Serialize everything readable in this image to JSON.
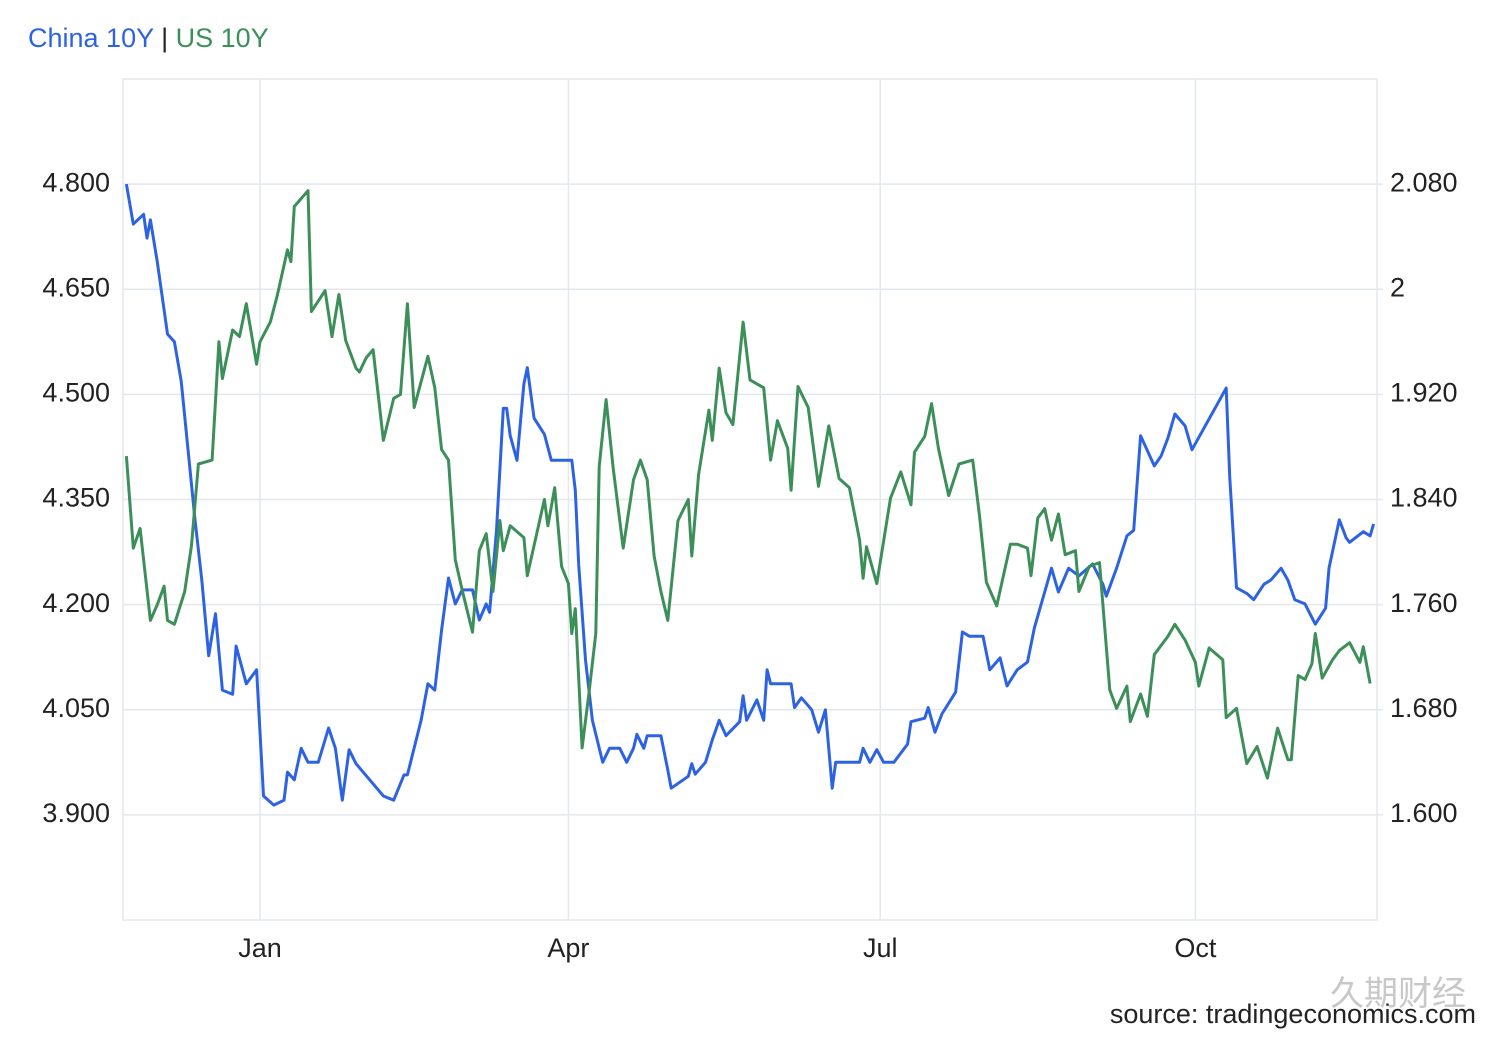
{
  "chart_data": {
    "type": "line",
    "legend_separator": "|",
    "source": "source: tradingeconomics.com",
    "watermark": "久期财经",
    "xlim": [
      0,
      366
    ],
    "xticks": [
      {
        "value": 40,
        "label": "Jan"
      },
      {
        "value": 130,
        "label": "Apr"
      },
      {
        "value": 221,
        "label": "Jul"
      },
      {
        "value": 313,
        "label": "Oct"
      }
    ],
    "ylim": [
      3.75,
      4.95
    ],
    "yticks": [
      {
        "value": 3.9,
        "label": "3.900"
      },
      {
        "value": 4.05,
        "label": "4.050"
      },
      {
        "value": 4.2,
        "label": "4.200"
      },
      {
        "value": 4.35,
        "label": "4.350"
      },
      {
        "value": 4.5,
        "label": "4.500"
      },
      {
        "value": 4.65,
        "label": "4.650"
      },
      {
        "value": 4.8,
        "label": "4.800"
      }
    ],
    "y2lim": [
      1.52,
      2.16
    ],
    "y2ticks": [
      {
        "value": 1.6,
        "label": "1.600"
      },
      {
        "value": 1.68,
        "label": "1.680"
      },
      {
        "value": 1.76,
        "label": "1.760"
      },
      {
        "value": 1.84,
        "label": "1.840"
      },
      {
        "value": 1.92,
        "label": "1.920"
      },
      2,
      {
        "value": 2.08,
        "label": "2.080"
      }
    ],
    "grid": true,
    "series": [
      {
        "name": "China 10Y",
        "color": "#2d63e2",
        "x": [
          1,
          3,
          6,
          7,
          8,
          10,
          13,
          15,
          17,
          21,
          23,
          25,
          27,
          29,
          32,
          33,
          36,
          39,
          41,
          44,
          47,
          48,
          50,
          52,
          54,
          57,
          60,
          62,
          64,
          66,
          68,
          76,
          79,
          82,
          83,
          87,
          89,
          91,
          93,
          95,
          97,
          99,
          102,
          104,
          106,
          107,
          109,
          111,
          112,
          113,
          115,
          117,
          118,
          120,
          123,
          125,
          131,
          132,
          133,
          135,
          137,
          140,
          142,
          145,
          147,
          149,
          150,
          152,
          153,
          157,
          159,
          160,
          165,
          166,
          167,
          170,
          172,
          174,
          176,
          180,
          181,
          182,
          185,
          187,
          188,
          189,
          195,
          196,
          198,
          201,
          203,
          205,
          207,
          208,
          215,
          216,
          218,
          220,
          222,
          225,
          229,
          230,
          234,
          235,
          237,
          239,
          243,
          245,
          247,
          251,
          253,
          256,
          258,
          261,
          264,
          266,
          269,
          271,
          273,
          276,
          279,
          283,
          286,
          287,
          290,
          293,
          295,
          297,
          301,
          303,
          305,
          307,
          310,
          312,
          322,
          323,
          325,
          328,
          330,
          333,
          335,
          338,
          340,
          342,
          345,
          348,
          351,
          352,
          355,
          357,
          358,
          362,
          364,
          365
        ],
        "values": [
          4.8,
          4.743,
          4.757,
          4.723,
          4.749,
          4.689,
          4.586,
          4.575,
          4.519,
          4.321,
          4.235,
          4.127,
          4.187,
          4.078,
          4.072,
          4.141,
          4.087,
          4.107,
          3.927,
          3.914,
          3.921,
          3.961,
          3.95,
          3.995,
          3.975,
          3.975,
          4.024,
          3.995,
          3.921,
          3.993,
          3.973,
          3.927,
          3.921,
          3.957,
          3.957,
          4.035,
          4.087,
          4.078,
          4.164,
          4.238,
          4.201,
          4.221,
          4.221,
          4.178,
          4.201,
          4.189,
          4.306,
          4.48,
          4.48,
          4.441,
          4.406,
          4.515,
          4.538,
          4.466,
          4.443,
          4.406,
          4.406,
          4.363,
          4.257,
          4.121,
          4.035,
          3.975,
          3.995,
          3.995,
          3.975,
          3.995,
          4.015,
          3.995,
          4.013,
          4.013,
          3.964,
          3.938,
          3.955,
          3.973,
          3.958,
          3.975,
          4.007,
          4.035,
          4.013,
          4.033,
          4.07,
          4.035,
          4.064,
          4.035,
          4.107,
          4.087,
          4.087,
          4.053,
          4.067,
          4.05,
          4.018,
          4.05,
          3.938,
          3.975,
          3.975,
          3.995,
          3.975,
          3.993,
          3.975,
          3.975,
          4.001,
          4.033,
          4.038,
          4.053,
          4.018,
          4.044,
          4.075,
          4.161,
          4.155,
          4.155,
          4.107,
          4.124,
          4.084,
          4.107,
          4.118,
          4.167,
          4.218,
          4.252,
          4.218,
          4.252,
          4.241,
          4.258,
          4.229,
          4.212,
          4.252,
          4.298,
          4.306,
          4.441,
          4.398,
          4.412,
          4.438,
          4.472,
          4.455,
          4.421,
          4.509,
          4.383,
          4.224,
          4.216,
          4.207,
          4.229,
          4.235,
          4.252,
          4.235,
          4.207,
          4.201,
          4.172,
          4.195,
          4.252,
          4.321,
          4.295,
          4.289,
          4.304,
          4.298,
          4.315
        ]
      },
      {
        "name": "US 10Y",
        "color": "#3d8f5a",
        "axis": "y2",
        "x": [
          1,
          3,
          5,
          8,
          10,
          12,
          13,
          15,
          18,
          20,
          22,
          26,
          28,
          29,
          32,
          34,
          36,
          39,
          40,
          43,
          45,
          48,
          49,
          50,
          54,
          55,
          59,
          61,
          63,
          65,
          68,
          69,
          71,
          73,
          76,
          79,
          81,
          83,
          85,
          89,
          91,
          93,
          95,
          97,
          99,
          102,
          104,
          106,
          108,
          110,
          111,
          113,
          117,
          118,
          123,
          124,
          126,
          128,
          130,
          131,
          132,
          134,
          136,
          138,
          139,
          141,
          143,
          146,
          149,
          151,
          153,
          155,
          157,
          159,
          162,
          165,
          166,
          168,
          171,
          172,
          174,
          176,
          178,
          181,
          183,
          187,
          189,
          191,
          194,
          195,
          197,
          200,
          203,
          206,
          209,
          212,
          215,
          216,
          217,
          220,
          224,
          227,
          230,
          231,
          234,
          236,
          238,
          241,
          244,
          248,
          250,
          252,
          255,
          259,
          261,
          264,
          265,
          267,
          269,
          271,
          273,
          275,
          278,
          279,
          282,
          285,
          288,
          290,
          293,
          294,
          297,
          299,
          301,
          305,
          307,
          310,
          313,
          314,
          317,
          321,
          322,
          325,
          328,
          331,
          334,
          337,
          340,
          341,
          343,
          345,
          347,
          348,
          350,
          353,
          355,
          358,
          361,
          362,
          364
        ],
        "values": [
          1.873,
          1.803,
          1.818,
          1.748,
          1.76,
          1.774,
          1.748,
          1.745,
          1.77,
          1.805,
          1.867,
          1.87,
          1.96,
          1.932,
          1.969,
          1.964,
          1.989,
          1.943,
          1.96,
          1.975,
          1.995,
          2.03,
          2.021,
          2.063,
          2.075,
          1.983,
          1.999,
          1.964,
          1.996,
          1.961,
          1.94,
          1.937,
          1.948,
          1.954,
          1.885,
          1.917,
          1.92,
          1.989,
          1.91,
          1.949,
          1.925,
          1.878,
          1.87,
          1.794,
          1.771,
          1.739,
          1.801,
          1.814,
          1.77,
          1.824,
          1.801,
          1.82,
          1.811,
          1.782,
          1.84,
          1.82,
          1.849,
          1.789,
          1.776,
          1.738,
          1.757,
          1.651,
          1.693,
          1.738,
          1.865,
          1.916,
          1.865,
          1.803,
          1.855,
          1.87,
          1.855,
          1.797,
          1.77,
          1.748,
          1.824,
          1.84,
          1.797,
          1.859,
          1.908,
          1.885,
          1.94,
          1.906,
          1.897,
          1.975,
          1.931,
          1.925,
          1.87,
          1.9,
          1.879,
          1.847,
          1.926,
          1.91,
          1.85,
          1.896,
          1.856,
          1.849,
          1.809,
          1.78,
          1.804,
          1.776,
          1.841,
          1.861,
          1.836,
          1.876,
          1.888,
          1.913,
          1.879,
          1.843,
          1.867,
          1.87,
          1.827,
          1.777,
          1.759,
          1.806,
          1.806,
          1.803,
          1.782,
          1.826,
          1.833,
          1.809,
          1.829,
          1.798,
          1.801,
          1.77,
          1.789,
          1.792,
          1.695,
          1.681,
          1.698,
          1.671,
          1.692,
          1.675,
          1.722,
          1.736,
          1.745,
          1.733,
          1.716,
          1.698,
          1.727,
          1.718,
          1.674,
          1.681,
          1.639,
          1.652,
          1.628,
          1.666,
          1.642,
          1.642,
          1.706,
          1.703,
          1.715,
          1.738,
          1.704,
          1.718,
          1.725,
          1.731,
          1.716,
          1.728,
          1.7
        ]
      }
    ]
  }
}
